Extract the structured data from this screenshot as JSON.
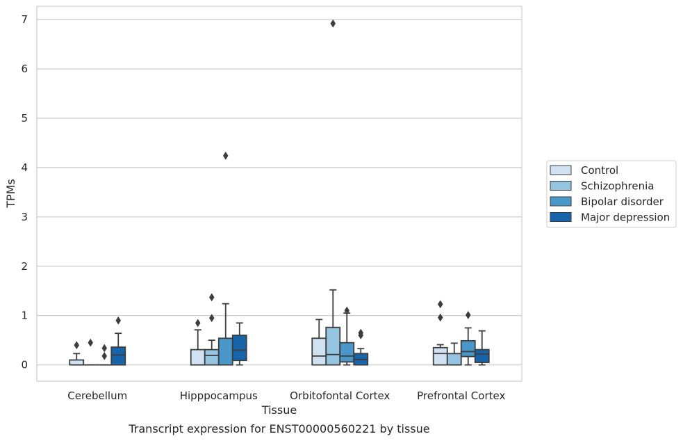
{
  "chart_data": {
    "type": "box",
    "xlabel": "Tissue",
    "ylabel": "TPMs",
    "caption": "Transcript expression for ENST00000560221 by tissue",
    "ylim": [
      -0.33,
      7.27
    ],
    "yticks": [
      0,
      1,
      2,
      3,
      4,
      5,
      6,
      7
    ],
    "grid": "horizontal",
    "legend_position": "right",
    "categories": [
      "Cerebellum",
      "Hipppocampus",
      "Orbitofontal Cortex",
      "Prefrontal Cortex"
    ],
    "series": [
      {
        "name": "Control",
        "color": "#d0e1f2",
        "boxes": [
          {
            "q1": 0,
            "median": 0,
            "q3": 0.1,
            "whisker_low": 0,
            "whisker_high": 0.23,
            "outliers": [
              0.4
            ]
          },
          {
            "q1": 0,
            "median": 0,
            "q3": 0.31,
            "whisker_low": 0,
            "whisker_high": 0.71,
            "outliers": [
              0.85
            ]
          },
          {
            "q1": 0,
            "median": 0.18,
            "q3": 0.54,
            "whisker_low": 0,
            "whisker_high": 0.92,
            "outliers": []
          },
          {
            "q1": 0,
            "median": 0.23,
            "q3": 0.35,
            "whisker_low": 0,
            "whisker_high": 0.41,
            "outliers": [
              0.96,
              1.23
            ]
          }
        ]
      },
      {
        "name": "Schizophrenia",
        "color": "#94c4df",
        "boxes": [
          {
            "q1": 0,
            "median": 0,
            "q3": 0,
            "whisker_low": 0,
            "whisker_high": 0,
            "outliers": [
              0.45
            ]
          },
          {
            "q1": 0,
            "median": 0.19,
            "q3": 0.31,
            "whisker_low": 0,
            "whisker_high": 0.5,
            "outliers": [
              0.95,
              1.37
            ]
          },
          {
            "q1": 0,
            "median": 0.21,
            "q3": 0.76,
            "whisker_low": 0,
            "whisker_high": 1.52,
            "outliers": [
              6.92
            ]
          },
          {
            "q1": 0,
            "median": 0,
            "q3": 0.23,
            "whisker_low": 0,
            "whisker_high": 0.44,
            "outliers": []
          }
        ]
      },
      {
        "name": "Bipolar disorder",
        "color": "#4a98c9",
        "boxes": [
          {
            "q1": 0,
            "median": 0,
            "q3": 0,
            "whisker_low": 0,
            "whisker_high": 0,
            "outliers": [
              0.18,
              0.34
            ]
          },
          {
            "q1": 0,
            "median": 0,
            "q3": 0.54,
            "whisker_low": 0,
            "whisker_high": 1.24,
            "outliers": [
              4.24
            ]
          },
          {
            "q1": 0.06,
            "median": 0.18,
            "q3": 0.45,
            "whisker_low": 0,
            "whisker_high": 1.05,
            "outliers": [
              1.1
            ]
          },
          {
            "q1": 0.17,
            "median": 0.27,
            "q3": 0.49,
            "whisker_low": 0,
            "whisker_high": 0.75,
            "outliers": [
              1.01
            ]
          }
        ]
      },
      {
        "name": "Major depression",
        "color": "#1764ab",
        "boxes": [
          {
            "q1": 0,
            "median": 0.2,
            "q3": 0.36,
            "whisker_low": 0,
            "whisker_high": 0.64,
            "outliers": [
              0.9
            ]
          },
          {
            "q1": 0.09,
            "median": 0.3,
            "q3": 0.6,
            "whisker_low": 0,
            "whisker_high": 0.85,
            "outliers": []
          },
          {
            "q1": 0,
            "median": 0.11,
            "q3": 0.23,
            "whisker_low": 0,
            "whisker_high": 0.33,
            "outliers": [
              0.6,
              0.65
            ]
          },
          {
            "q1": 0.05,
            "median": 0.22,
            "q3": 0.31,
            "whisker_low": 0,
            "whisker_high": 0.69,
            "outliers": []
          }
        ]
      }
    ]
  }
}
